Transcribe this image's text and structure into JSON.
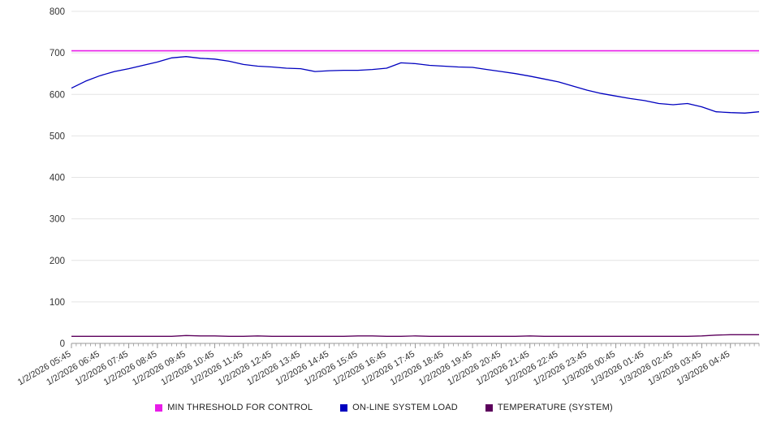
{
  "chart_data": {
    "type": "line",
    "title": "",
    "xlabel": "",
    "ylabel": "",
    "ylim": [
      0,
      800
    ],
    "ytick_step": 100,
    "grid": "horizontal",
    "legend_position": "bottom",
    "axis_color": "#999999",
    "gridline_color": "#e4e4e4",
    "tick_label_color": "#333333",
    "x_labels": [
      "1/2/2026 05:45",
      "1/2/2026 06:45",
      "1/2/2026 07:45",
      "1/2/2026 08:45",
      "1/2/2026 09:45",
      "1/2/2026 10:45",
      "1/2/2026 11:45",
      "1/2/2026 12:45",
      "1/2/2026 13:45",
      "1/2/2026 14:45",
      "1/2/2026 15:45",
      "1/2/2026 16:45",
      "1/2/2026 17:45",
      "1/2/2026 18:45",
      "1/2/2026 19:45",
      "1/2/2026 20:45",
      "1/2/2026 21:45",
      "1/2/2026 22:45",
      "1/2/2026 23:45",
      "1/3/2026 00:45",
      "1/3/2026 01:45",
      "1/3/2026 02:45",
      "1/3/2026 03:45",
      "1/3/2026 04:45"
    ],
    "x_points_per_label_interval": 2,
    "series": [
      {
        "name": "MIN THRESHOLD FOR CONTROL",
        "color": "#e81ce8",
        "stroke_width": 1.6,
        "values": [
          705,
          705,
          705,
          705,
          705,
          705,
          705,
          705,
          705,
          705,
          705,
          705,
          705,
          705,
          705,
          705,
          705,
          705,
          705,
          705,
          705,
          705,
          705,
          705,
          705,
          705,
          705,
          705,
          705,
          705,
          705,
          705,
          705,
          705,
          705,
          705,
          705,
          705,
          705,
          705,
          705,
          705,
          705,
          705,
          705,
          705,
          705,
          705,
          705
        ]
      },
      {
        "name": "ON-LINE SYSTEM LOAD",
        "color": "#0000bf",
        "stroke_width": 1.3,
        "values": [
          615,
          632,
          645,
          655,
          662,
          670,
          678,
          688,
          691,
          687,
          685,
          680,
          672,
          668,
          666,
          663,
          662,
          655,
          657,
          658,
          658,
          660,
          663,
          676,
          674,
          670,
          668,
          666,
          665,
          660,
          655,
          650,
          644,
          637,
          630,
          620,
          610,
          602,
          596,
          590,
          585,
          578,
          575,
          578,
          570,
          558,
          556,
          555,
          558
        ]
      },
      {
        "name": "TEMPERATURE (SYSTEM)",
        "color": "#5c005c",
        "stroke_width": 1.3,
        "values": [
          17,
          17,
          17,
          17,
          17,
          17,
          17,
          17,
          19,
          18,
          18,
          17,
          17,
          18,
          17,
          17,
          17,
          17,
          17,
          17,
          18,
          18,
          17,
          17,
          18,
          17,
          17,
          17,
          17,
          17,
          17,
          17,
          18,
          17,
          17,
          17,
          17,
          17,
          17,
          17,
          17,
          17,
          17,
          17,
          18,
          20,
          21,
          21,
          21
        ]
      }
    ]
  }
}
